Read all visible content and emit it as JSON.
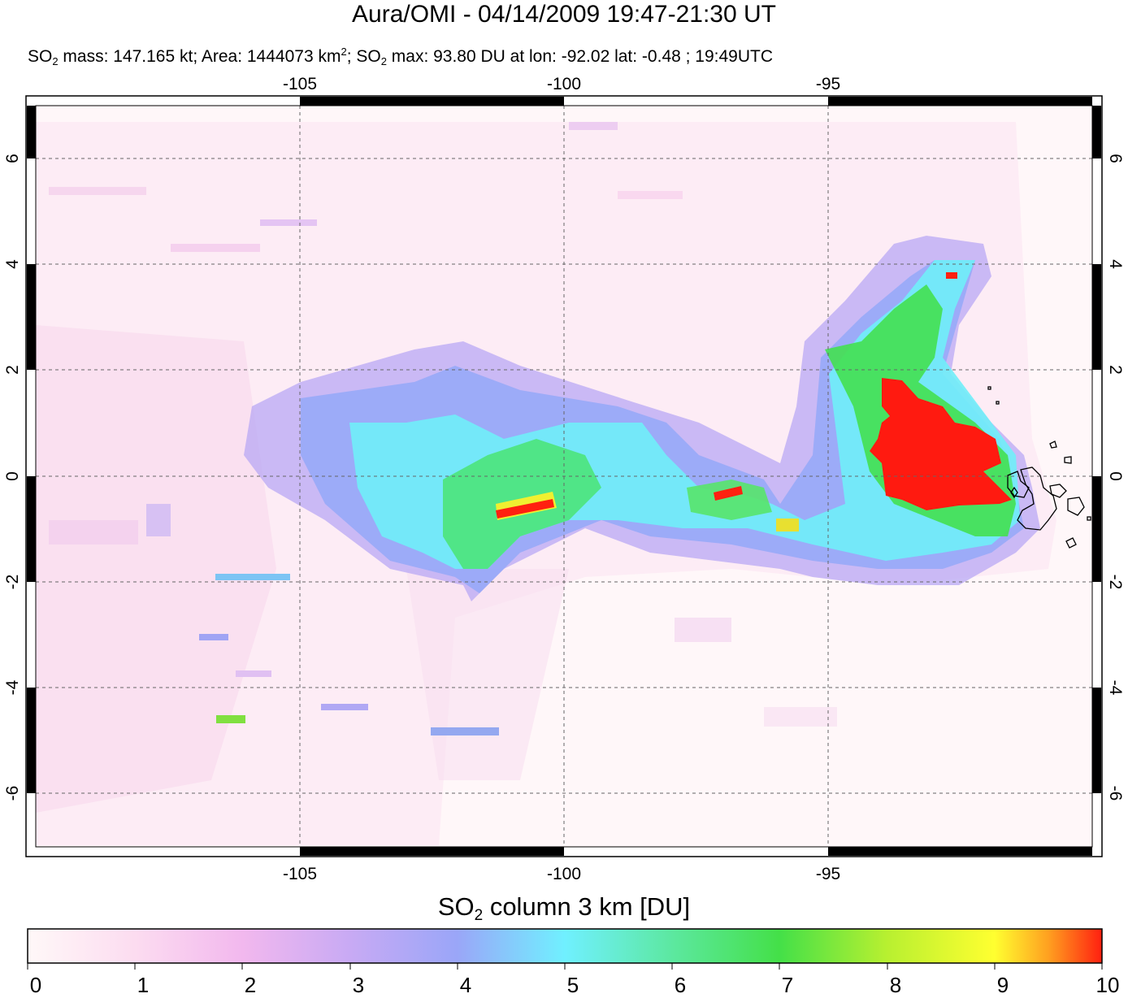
{
  "title": "Aura/OMI - 04/14/2009 19:47-21:30 UT",
  "subtitle": {
    "so2": "SO",
    "sub": "2",
    "mass_text": " mass: 147.165 kt; Area: 1444073 km",
    "sup": "2",
    "sep": "; SO",
    "max_text": " max: 93.80 DU at lon: -92.02 lat: -0.48 ; 19:49UTC"
  },
  "map": {
    "lon_range": [
      -110,
      -89.8
    ],
    "lat_range": [
      -7.1,
      7.1
    ],
    "lon_ticks": [
      {
        "value": -105,
        "label": "-105"
      },
      {
        "value": -100,
        "label": "-100"
      },
      {
        "value": -95,
        "label": "-95"
      }
    ],
    "lat_ticks": [
      {
        "value": 6,
        "label": "6"
      },
      {
        "value": 4,
        "label": "4"
      },
      {
        "value": 2,
        "label": "2"
      },
      {
        "value": 0,
        "label": "0"
      },
      {
        "value": -2,
        "label": "-2"
      },
      {
        "value": -4,
        "label": "-4"
      },
      {
        "value": -6,
        "label": "-6"
      }
    ],
    "grid": "dashed",
    "features": [
      {
        "name": "so2-plume-body",
        "band": "mid"
      },
      {
        "name": "so2-plume-core-red",
        "band": "max"
      },
      {
        "name": "galapagos-islands-coastline",
        "band": "outline"
      }
    ]
  },
  "colorbar": {
    "title_a": "SO",
    "title_sub": "2",
    "title_b": " column 3 km [DU]",
    "min": 0,
    "max": 10,
    "ticks": [
      "0",
      "1",
      "2",
      "3",
      "4",
      "5",
      "6",
      "7",
      "8",
      "9",
      "10"
    ],
    "colors": [
      "#fff8f8",
      "#fcdcf0",
      "#f2b8ee",
      "#c8aaf4",
      "#9aa6f8",
      "#70f0ff",
      "#5ce8a0",
      "#44e048",
      "#b8f030",
      "#ffff30",
      "#ffa020",
      "#ff2010"
    ]
  }
}
